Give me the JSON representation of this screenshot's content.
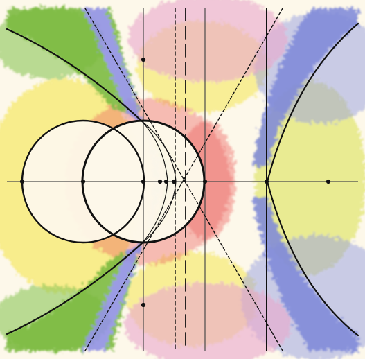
{
  "artwork": {
    "palette": {
      "paper": "#fdf8ea",
      "yellow": "#f3e33f",
      "yellow_green": "#cfdc4c",
      "green": "#64ae37",
      "blue": "#7c8fd8",
      "violet": "#b393d9",
      "pink": "#e8a2c8",
      "red": "#e84e4e",
      "ink": "#111111",
      "axis": "#4b4b4b"
    },
    "marker_count": 9
  }
}
